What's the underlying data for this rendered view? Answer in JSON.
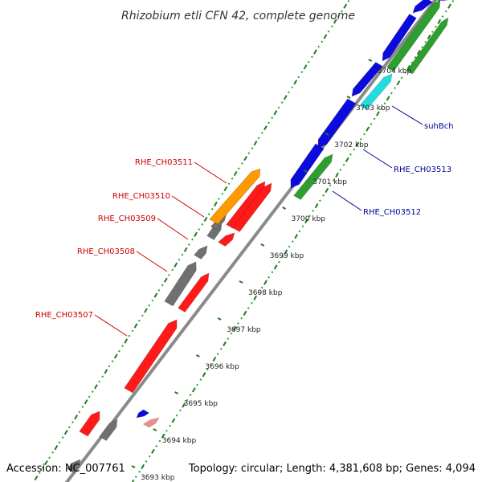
{
  "title": "Rhizobium etli CFN 42, complete genome",
  "footer": {
    "accession": "Accession: NC_007761",
    "summary": "Topology: circular; Length: 4,381,608 bp; Genes: 4,094"
  },
  "colors": {
    "background": "#ffffff",
    "backbone": "#8a8a8a",
    "tick_major": "#1f7a1f",
    "tick_minor": "#2aa02a",
    "label_forward": "#cc0000",
    "label_reverse": "#000099",
    "gene_red": "#ff1a1a",
    "gene_gray": "#707070",
    "gene_orange": "#ff9900",
    "gene_blue": "#0b0bdd",
    "gene_green": "#2e9e2e",
    "gene_cyan": "#22dddd",
    "gene_pink": "#f08c8c"
  },
  "ticks": [
    "3693 kbp",
    "3694 kbp",
    "3695 kbp",
    "3696 kbp",
    "3697 kbp",
    "3698 kbp",
    "3699 kbp",
    "3700 kbp",
    "3701 kbp",
    "3702 kbp",
    "3703 kbp",
    "3704 kbp"
  ],
  "gene_labels": {
    "forward": [
      "RHE_CH03507",
      "RHE_CH03508",
      "RHE_CH03509",
      "RHE_CH03510",
      "RHE_CH03511"
    ],
    "reverse": [
      "RHE_CH03512",
      "RHE_CH03513",
      "suhBch"
    ]
  },
  "genes": [
    {
      "strand": "outer",
      "color": "gene_gray",
      "dir": 1
    },
    {
      "strand": "outer",
      "color": "gene_red",
      "dir": 1
    },
    {
      "strand": "outer",
      "color": "gene_gray",
      "dir": 1
    },
    {
      "strand": "outer",
      "color": "gene_red",
      "dir": 1
    },
    {
      "strand": "outer",
      "color": "gene_gray",
      "dir": 1
    },
    {
      "strand": "outer",
      "color": "gene_gray",
      "dir": 1
    },
    {
      "strand": "outer",
      "color": "gene_red",
      "dir": 1
    },
    {
      "strand": "outer",
      "color": "gene_gray",
      "dir": 1
    },
    {
      "strand": "outer",
      "color": "gene_red",
      "dir": 1
    },
    {
      "strand": "outer",
      "color": "gene_gray",
      "dir": 1
    },
    {
      "strand": "outer",
      "color": "gene_red",
      "dir": 1
    },
    {
      "strand": "outer",
      "color": "gene_orange",
      "dir": 1
    },
    {
      "strand": "outer",
      "color": "gene_red",
      "dir": 1
    },
    {
      "strand": "inner",
      "color": "gene_blue",
      "dir": -1
    },
    {
      "strand": "inner",
      "color": "gene_pink",
      "dir": 1
    },
    {
      "strand": "inner",
      "color": "gene_blue",
      "dir": -1
    },
    {
      "strand": "inner",
      "color": "gene_green",
      "dir": 1
    },
    {
      "strand": "inner",
      "color": "gene_blue",
      "dir": -1
    },
    {
      "strand": "inner",
      "color": "gene_blue",
      "dir": -1
    },
    {
      "strand": "inner",
      "color": "gene_cyan",
      "dir": 1
    },
    {
      "strand": "inner",
      "color": "gene_blue",
      "dir": -1
    },
    {
      "strand": "inner",
      "color": "gene_green",
      "dir": 1
    },
    {
      "strand": "inner",
      "color": "gene_blue",
      "dir": -1
    },
    {
      "strand": "inner",
      "color": "gene_green",
      "dir": 1
    },
    {
      "strand": "inner",
      "color": "gene_blue",
      "dir": -1
    }
  ]
}
